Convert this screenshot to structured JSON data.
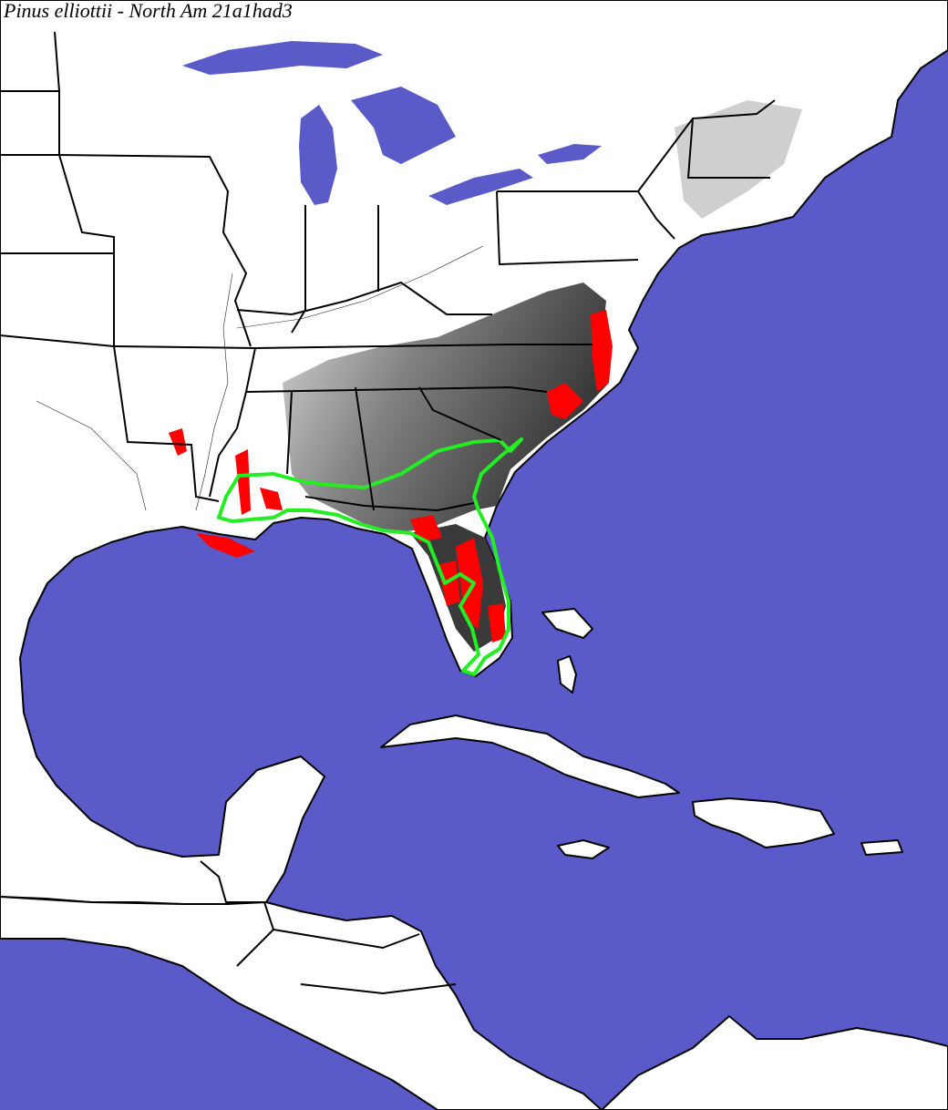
{
  "title": "Pinus elliottii - North Am 21a1had3"
}
